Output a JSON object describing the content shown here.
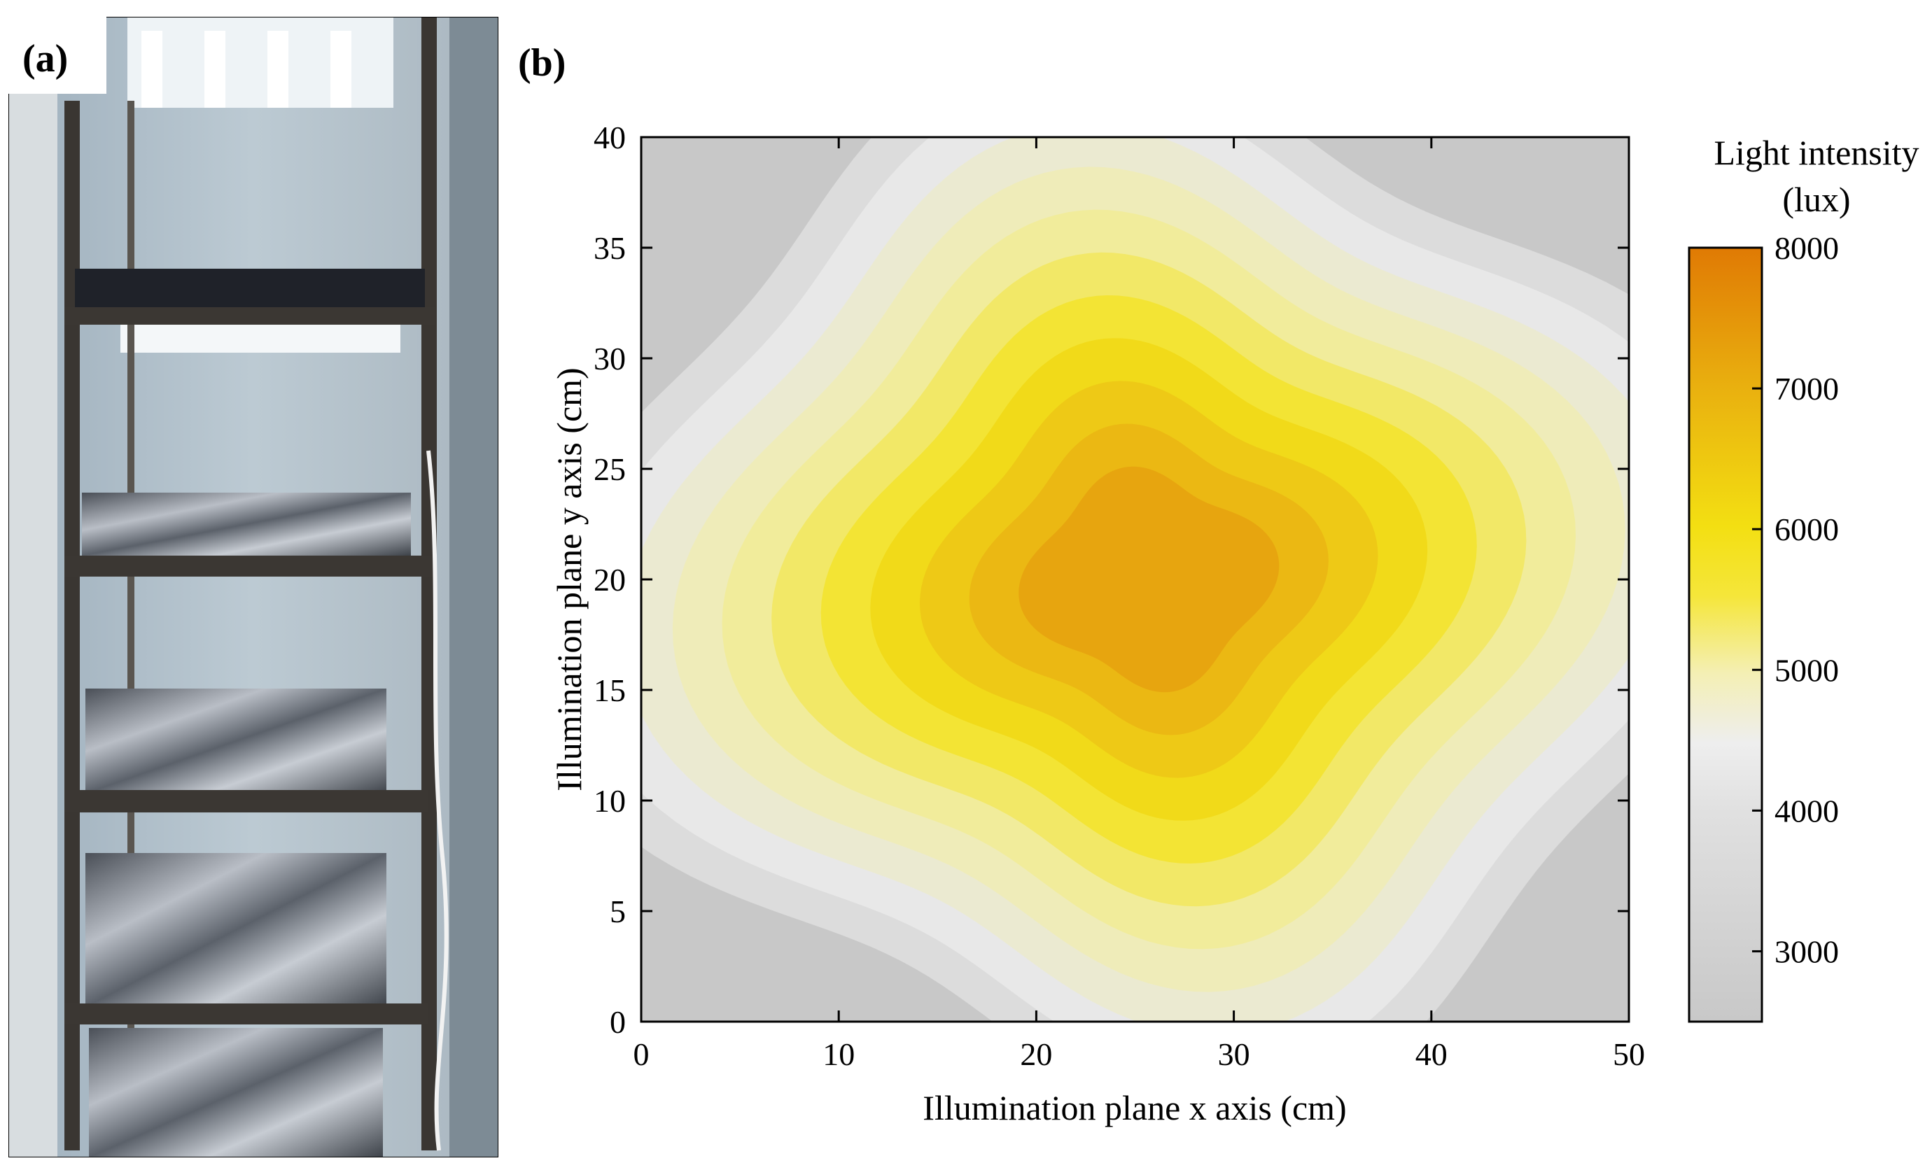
{
  "panels": [
    {
      "label": "(a)"
    },
    {
      "label": "(b)"
    }
  ],
  "chart_data": {
    "type": "contour",
    "xlabel": "Illumination plane x axis (cm)",
    "ylabel": "Illumination plane y axis (cm)",
    "xlim": [
      0,
      50
    ],
    "ylim": [
      0,
      40
    ],
    "xticks": [
      0,
      10,
      20,
      30,
      40,
      50
    ],
    "yticks": [
      0,
      5,
      10,
      15,
      20,
      25,
      30,
      35,
      40
    ],
    "peak": {
      "x": 25.7,
      "y": 20,
      "value": 7500
    },
    "corner_value": 2700,
    "contour_levels": [
      3000,
      3400,
      3800,
      4200,
      4600,
      5000,
      5400,
      5800,
      6200,
      6600,
      7000
    ],
    "colorbar": {
      "title_line1": "Light intensity",
      "title_line2": "(lux)",
      "range": [
        2500,
        8000
      ],
      "ticks": [
        3000,
        4000,
        5000,
        6000,
        7000,
        8000
      ],
      "colors": [
        "#c8c8c8",
        "#e8e8e8",
        "#f1eda8",
        "#f3e21a",
        "#eab412",
        "#e07d06"
      ]
    }
  }
}
